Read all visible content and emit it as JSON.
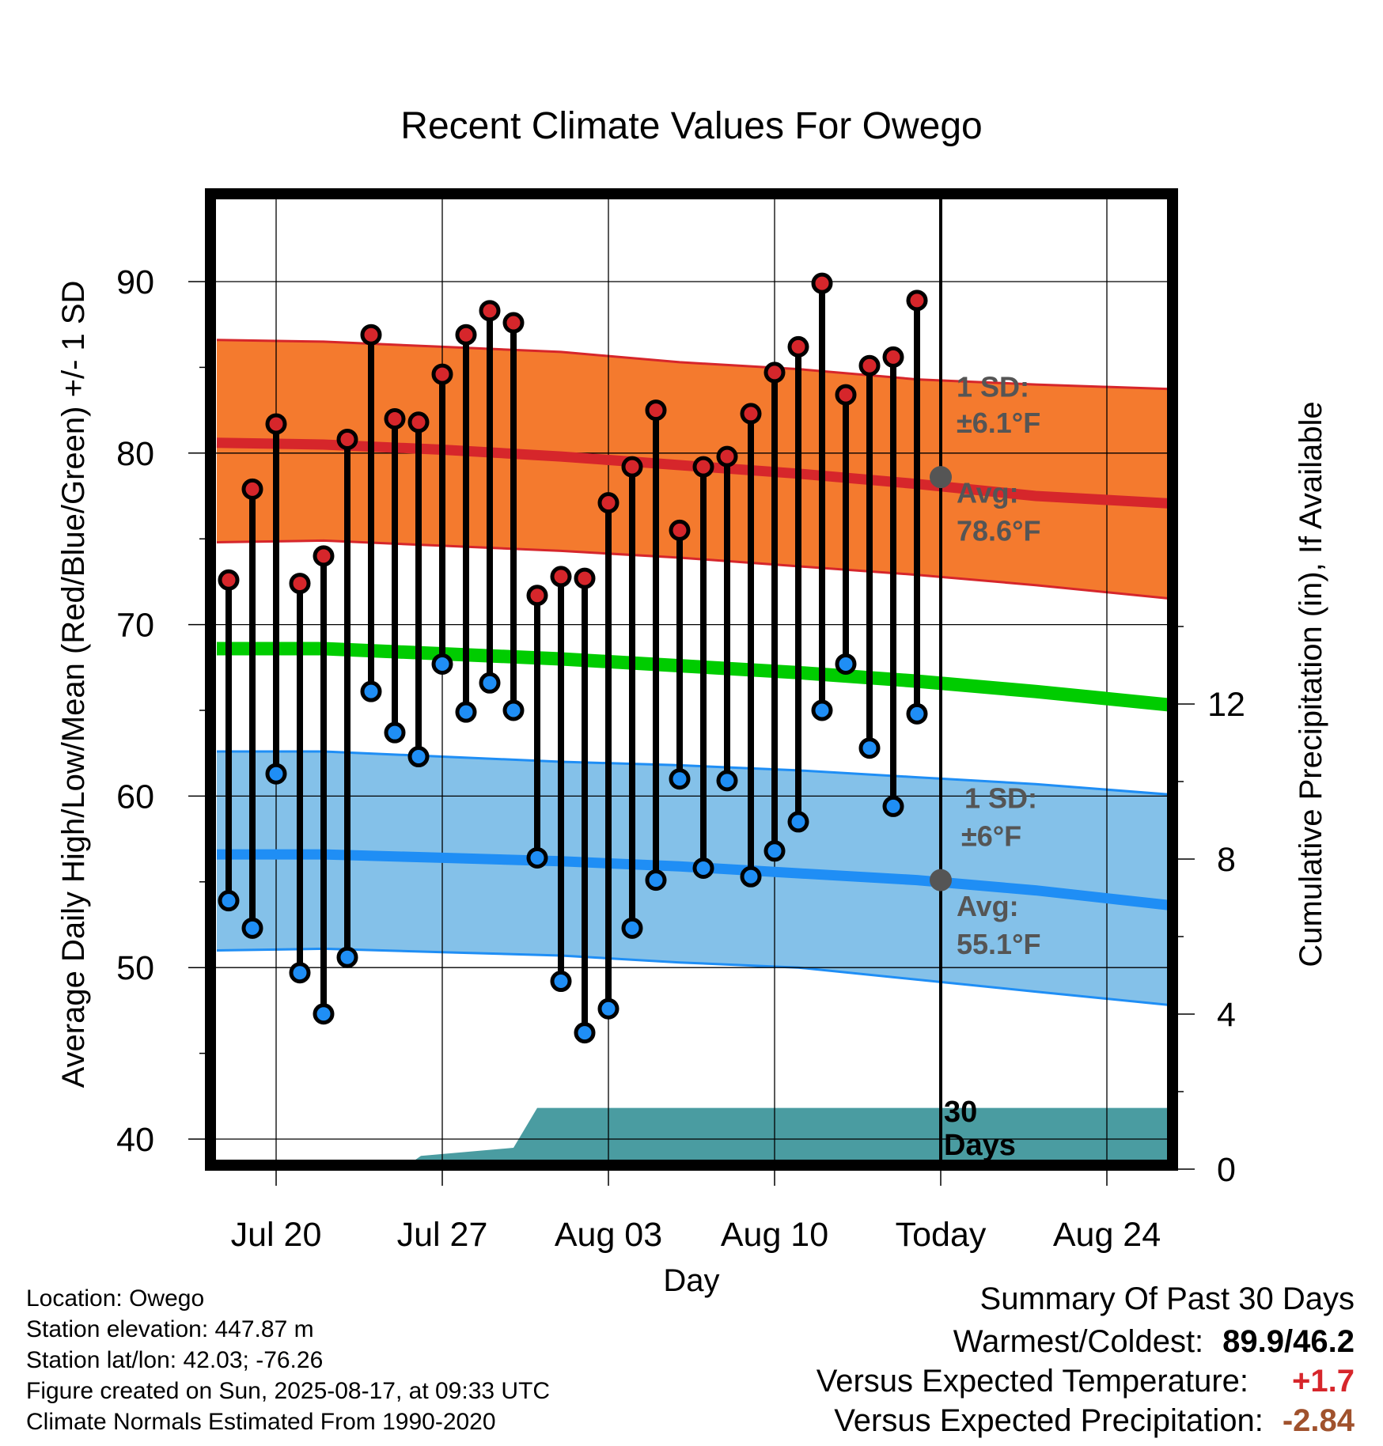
{
  "chart_data": {
    "type": "line",
    "title": "Recent Climate Values For Owego",
    "xlabel": "Day",
    "ylabel_left": "Average Daily High/Low/Mean (Red/Blue/Green) +/- 1 SD",
    "ylabel_right": "Cumulative Precipitation (in), If Available",
    "ylim_left": [
      38.5,
      94.5
    ],
    "ylim_right": [
      0,
      16.5
    ],
    "left_ticks": [
      40,
      50,
      60,
      70,
      80,
      90
    ],
    "right_ticks": [
      0,
      4,
      8,
      12
    ],
    "x_ticks": [
      {
        "day": 3,
        "label": "Jul 20"
      },
      {
        "day": 10,
        "label": "Jul 27"
      },
      {
        "day": 17,
        "label": "Aug 03"
      },
      {
        "day": 24,
        "label": "Aug 10"
      },
      {
        "day": 31,
        "label": "Today"
      },
      {
        "day": 38,
        "label": "Aug 24"
      }
    ],
    "x_range": [
      0,
      41.5
    ],
    "today_day": 31,
    "days": [
      1,
      2,
      3,
      4,
      5,
      6,
      7,
      8,
      9,
      10,
      11,
      12,
      13,
      14,
      15,
      16,
      17,
      18,
      19,
      20,
      21,
      22,
      23,
      24,
      25,
      26,
      27,
      28,
      29,
      30
    ],
    "highs": [
      72.6,
      77.9,
      81.7,
      72.4,
      74.0,
      80.8,
      86.9,
      82.0,
      81.8,
      84.6,
      86.9,
      88.3,
      87.6,
      71.7,
      72.8,
      72.7,
      77.1,
      79.2,
      82.5,
      75.5,
      79.2,
      79.8,
      82.3,
      84.7,
      86.2,
      89.9,
      83.4,
      85.1,
      85.6,
      88.9
    ],
    "lows": [
      53.9,
      52.3,
      61.3,
      49.7,
      47.3,
      50.6,
      66.1,
      63.7,
      62.3,
      67.7,
      64.9,
      66.6,
      65.0,
      56.4,
      49.2,
      46.2,
      47.6,
      52.3,
      55.1,
      61.0,
      55.8,
      60.9,
      55.3,
      56.8,
      58.5,
      65.0,
      67.7,
      62.8,
      59.4,
      64.8
    ],
    "normal_x": [
      0.5,
      5,
      10,
      15,
      20,
      25,
      30,
      35,
      41.5
    ],
    "normal_high": [
      80.6,
      80.5,
      80.2,
      79.8,
      79.3,
      78.8,
      78.2,
      77.5,
      77.0
    ],
    "normal_high_upper": [
      86.6,
      86.5,
      86.2,
      85.9,
      85.3,
      84.9,
      84.3,
      84.0,
      83.7
    ],
    "normal_high_lower": [
      74.8,
      74.9,
      74.6,
      74.3,
      73.9,
      73.4,
      72.9,
      72.3,
      71.4
    ],
    "normal_mean": [
      68.6,
      68.6,
      68.3,
      68.0,
      67.6,
      67.2,
      66.7,
      66.1,
      65.2
    ],
    "normal_low": [
      56.6,
      56.6,
      56.4,
      56.2,
      55.9,
      55.5,
      55.1,
      54.5,
      53.5
    ],
    "normal_low_upper": [
      62.6,
      62.6,
      62.3,
      62.0,
      61.8,
      61.5,
      61.1,
      60.7,
      60.0
    ],
    "normal_low_lower": [
      51.0,
      51.1,
      50.9,
      50.7,
      50.3,
      50.0,
      49.3,
      48.6,
      47.7
    ],
    "precip_x": [
      0.5,
      8.3,
      9.1,
      13.0,
      14.0,
      30.5,
      41.5
    ],
    "precip": [
      0.0,
      0.0,
      0.34,
      0.55,
      1.58,
      1.58,
      1.58
    ],
    "high_annotations": {
      "sd_label": "1 SD:",
      "sd_value": "±6.1°F",
      "avg_label": "Avg:",
      "avg_value": "78.6°F"
    },
    "low_annotations": {
      "sd_label": "1 SD:",
      "sd_value": "±6°F",
      "avg_label": "Avg:",
      "avg_value": "55.1°F"
    },
    "today_high_avg": 78.6,
    "today_low_avg": 55.1,
    "days_label_1": "30",
    "days_label_2": "Days",
    "colors": {
      "high_band": "#f47a2e",
      "high_line": "#d6262b",
      "mean_line": "#00cc00",
      "low_band": "#84c1e9",
      "low_line": "#1f8ef5",
      "precip": "#4a9ca1",
      "high_dot": "#d6262b",
      "low_dot": "#1f8ef5",
      "today_dot": "#555555"
    }
  },
  "station": {
    "location": "Location: Owego",
    "elevation": "Station elevation: 447.87 m",
    "latlon": "Station lat/lon: 42.03; -76.26",
    "created": "Figure created on Sun, 2025-08-17, at 09:33 UTC",
    "normals": "Climate Normals Estimated From 1990-2020"
  },
  "summary": {
    "heading": "Summary Of Past 30 Days",
    "warm_cold_label": "Warmest/Coldest:",
    "warm_cold_value": "89.9/46.2",
    "temp_label": "Versus Expected Temperature:",
    "temp_value": "+1.7",
    "temp_color": "#d6262b",
    "precip_label": "Versus Expected Precipitation:",
    "precip_value": "-2.84",
    "precip_color": "#a0522d"
  }
}
